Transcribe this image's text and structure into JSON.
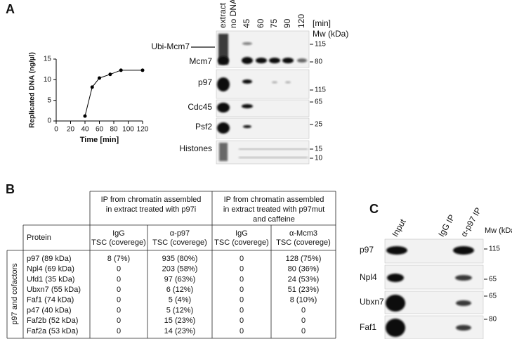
{
  "chart_data": {
    "type": "line",
    "x": [
      40,
      50,
      60,
      75,
      90,
      120
    ],
    "values": [
      1.2,
      8.2,
      10.4,
      11.3,
      12.3,
      12.3
    ],
    "xlabel": "Time [min]",
    "ylabel": "Replicated DNA (ng/µl)",
    "xlim": [
      0,
      120
    ],
    "ylim": [
      0,
      15
    ],
    "xticks": [
      0,
      20,
      40,
      60,
      80,
      100,
      120
    ],
    "yticks": [
      0,
      5,
      10,
      15
    ],
    "color": "#000000"
  },
  "panel_a": {
    "label": "A",
    "lanes": [
      "extract",
      "no DNA",
      "45",
      "60",
      "75",
      "90",
      "120"
    ],
    "time_unit": "[min]",
    "mw_title": "Mw (kDa)",
    "rows": [
      "Ubi-Mcm7",
      "Mcm7",
      "p97",
      "Cdc45",
      "Psf2",
      "Histones"
    ],
    "mw_markers": [
      "115",
      "80",
      "115",
      "65",
      "25",
      "15",
      "10"
    ]
  },
  "panel_b": {
    "label": "B",
    "group_headers": [
      [
        "IP from chromatin assembled",
        "in extract treated with p97i"
      ],
      [
        "IP from chromatin assembled",
        "in extract treated with p97mut",
        "and caffeine"
      ]
    ],
    "column_headers": [
      [
        "Protein"
      ],
      [
        "IgG",
        "TSC (coverege)"
      ],
      [
        "α-p97",
        "TSC (coverege)"
      ],
      [
        "IgG",
        "TSC (coverege)"
      ],
      [
        "α-Mcm3",
        "TSC (coverege)"
      ]
    ],
    "side_label": "p97 and cofactors",
    "rows": [
      [
        "p97 (89 kDa)",
        "8 (7%)",
        "935 (80%)",
        "0",
        "128 (75%)"
      ],
      [
        "Npl4 (69 kDa)",
        "0",
        "203 (58%)",
        "0",
        "80 (36%)"
      ],
      [
        "Ufd1 (35 kDa)",
        "0",
        "97 (63%)",
        "0",
        "24 (53%)"
      ],
      [
        "Ubxn7 (55 kDa)",
        "0",
        "6 (12%)",
        "0",
        "51 (23%)"
      ],
      [
        "Faf1 (74 kDa)",
        "0",
        "5 (4%)",
        "0",
        "8 (10%)"
      ],
      [
        "p47 (40 kDa)",
        "0",
        "5 (12%)",
        "0",
        "0"
      ],
      [
        "Faf2b (52 kDa)",
        "0",
        "15 (23%)",
        "0",
        "0"
      ],
      [
        "Faf2a (53 kDa)",
        "0",
        "14 (23%)",
        "0",
        "0"
      ]
    ]
  },
  "panel_c": {
    "label": "C",
    "lanes": [
      "Input",
      "IgG IP",
      "α-p97 IP"
    ],
    "mw_title": "Mw (kDa)",
    "rows": [
      "p97",
      "Npl4",
      "Ubxn7",
      "Faf1"
    ],
    "mw_markers": [
      "115",
      "65",
      "65",
      "80"
    ]
  }
}
